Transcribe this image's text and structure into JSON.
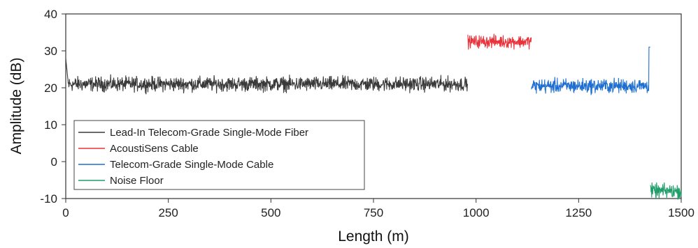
{
  "chart_data": {
    "type": "line",
    "xlabel": "Length (m)",
    "ylabel": "Amplitude (dB)",
    "xlim": [
      0,
      1500
    ],
    "ylim": [
      -10,
      40
    ],
    "x_ticks": [
      "0",
      "250",
      "500",
      "750",
      "1000",
      "1250",
      "1500"
    ],
    "y_ticks": [
      "-10",
      "0",
      "10",
      "20",
      "30",
      "40"
    ],
    "grid": false,
    "legend_position": "lower-left",
    "series": [
      {
        "name": "Lead-In Telecom-Grade Single-Mode Fiber",
        "color": "#3a3a3a",
        "x_range": [
          0,
          980
        ],
        "level": 21,
        "noise": 1.5,
        "start_spike": 28
      },
      {
        "name": "AcoustiSens Cable",
        "color": "#e8333b",
        "x_range": [
          980,
          1135
        ],
        "level": 32.5,
        "noise": 1.3
      },
      {
        "name": "Telecom-Grade Single-Mode Cable",
        "color": "#1f6fd1",
        "x_range": [
          1135,
          1425
        ],
        "level": 20.5,
        "noise": 1.5,
        "end_spike": 31
      },
      {
        "name": "Noise Floor",
        "color": "#1f9e6a",
        "x_range": [
          1425,
          1500
        ],
        "level": -8,
        "noise": 1.5
      }
    ]
  }
}
